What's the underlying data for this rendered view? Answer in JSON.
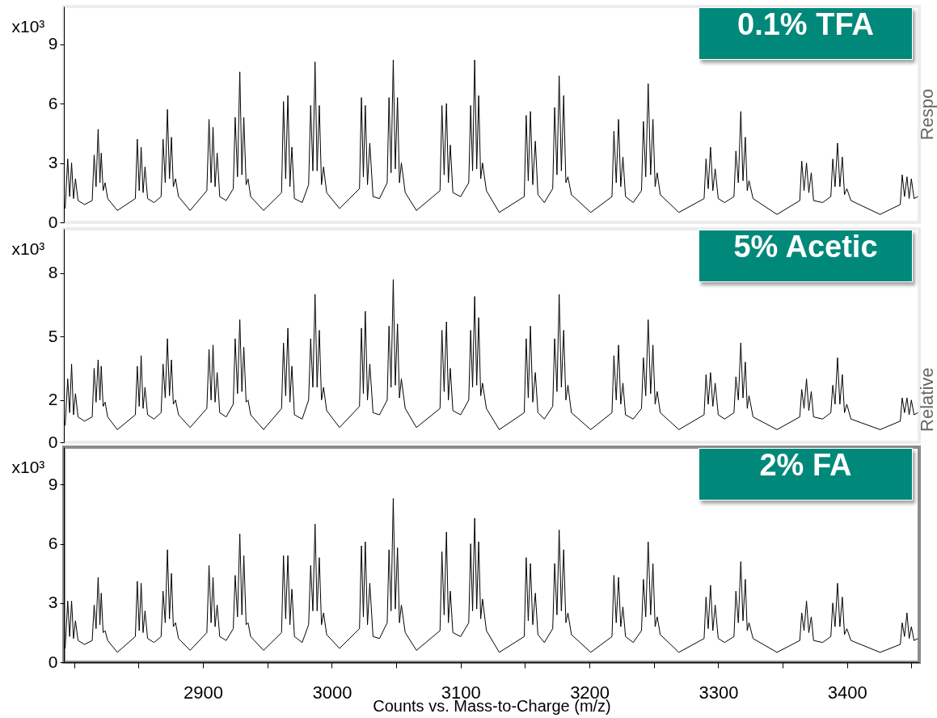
{
  "chart_data": [
    {
      "type": "line",
      "title": "0.1% TFA",
      "ylabel": "x10³",
      "tick_labels": "y",
      "annotations": [
        "Respo"
      ],
      "xlim": [
        2792,
        3456
      ],
      "ylim": [
        0,
        10.9
      ],
      "yticks": [
        0,
        3,
        6,
        9
      ],
      "x": [
        2793,
        2795,
        2796.5,
        2798,
        2799.5,
        2801,
        2803,
        2808,
        2814,
        2815.5,
        2817,
        2818.6,
        2820,
        2821,
        2822.5,
        2824,
        2826,
        2833.5,
        2847.5,
        2849,
        2850.5,
        2852,
        2853.5,
        2855,
        2857,
        2862,
        2867.5,
        2869,
        2870.7,
        2872.4,
        2874,
        2875.5,
        2877,
        2878.7,
        2881,
        2890,
        2903,
        2904.7,
        2906.3,
        2907.8,
        2909.4,
        2911,
        2913,
        2918,
        2923.5,
        2925,
        2926.8,
        2928.6,
        2930.2,
        2931.7,
        2933.5,
        2935,
        2937,
        2947,
        2961,
        2962.5,
        2964.2,
        2965.9,
        2967.5,
        2969,
        2971,
        2977,
        2982,
        2983.6,
        2985.3,
        2987,
        2988.6,
        2990.3,
        2992,
        2993.6,
        2996,
        3006,
        3021.5,
        3023,
        3024.5,
        3026,
        3027.7,
        3029.5,
        3032,
        3037,
        3043,
        3044.4,
        3046,
        3047.7,
        3049.3,
        3051,
        3052.5,
        3054,
        3057,
        3065.7,
        3084,
        3085.5,
        3087.2,
        3089,
        3090.5,
        3092,
        3094,
        3100,
        3106.3,
        3107.8,
        3109.3,
        3110.9,
        3112.5,
        3114,
        3115.6,
        3117,
        3120,
        3130,
        3149.4,
        3150.9,
        3152.5,
        3154.2,
        3156,
        3158,
        3160,
        3165,
        3171.5,
        3173,
        3174.8,
        3176.5,
        3178.2,
        3180,
        3181.7,
        3183.3,
        3186,
        3201,
        3217.5,
        3219,
        3220.8,
        3222.6,
        3224.3,
        3226,
        3228,
        3234,
        3240.4,
        3241.9,
        3243.7,
        3245.6,
        3247.5,
        3249.3,
        3251,
        3252.6,
        3255,
        3269.4,
        3289,
        3290.5,
        3292.2,
        3294,
        3295.8,
        3297.6,
        3300,
        3305,
        3312.2,
        3313.7,
        3315.6,
        3317.5,
        3319.2,
        3321,
        3322.5,
        3323.9,
        3327,
        3345.6,
        3363.3,
        3364.8,
        3366.6,
        3368.5,
        3370.3,
        3372.2,
        3374,
        3381,
        3387.4,
        3388.9,
        3390.7,
        3392.6,
        3394.4,
        3396.3,
        3398,
        3399.8,
        3403,
        3425.6,
        3441.3,
        3442.8,
        3444.6,
        3446.5,
        3448.2,
        3449.9,
        3452,
        3455
      ],
      "series": [
        {
          "color": "#000000",
          "values": [
            0.7,
            3.2,
            1.3,
            3.0,
            1.2,
            2.2,
            1.1,
            0.9,
            1.1,
            3.4,
            1.8,
            4.7,
            2.0,
            3.5,
            1.6,
            2.0,
            1.2,
            0.6,
            1.2,
            4.2,
            1.6,
            3.8,
            1.5,
            2.8,
            1.2,
            1.0,
            1.3,
            4.2,
            2.0,
            5.7,
            2.2,
            4.3,
            1.8,
            2.2,
            1.3,
            0.6,
            1.6,
            5.2,
            2.0,
            4.8,
            1.8,
            3.5,
            1.3,
            1.1,
            1.7,
            5.3,
            2.3,
            7.6,
            2.4,
            5.3,
            1.9,
            2.2,
            1.3,
            0.6,
            1.5,
            6.1,
            2.2,
            6.4,
            1.8,
            3.8,
            1.2,
            1.0,
            1.9,
            5.9,
            2.6,
            8.1,
            2.6,
            5.9,
            1.9,
            2.8,
            1.5,
            0.7,
            1.7,
            6.3,
            2.3,
            5.9,
            1.9,
            4.0,
            1.3,
            1.2,
            2.0,
            6.3,
            2.5,
            8.2,
            2.7,
            6.3,
            2.0,
            3.0,
            1.5,
            0.6,
            1.6,
            5.9,
            2.4,
            6.0,
            2.0,
            3.9,
            1.5,
            1.3,
            2.0,
            5.9,
            2.6,
            8.2,
            2.7,
            6.4,
            2.2,
            3.0,
            1.6,
            0.5,
            1.3,
            5.4,
            2.1,
            5.6,
            1.9,
            4.1,
            1.4,
            1.0,
            1.7,
            5.8,
            2.4,
            7.4,
            2.6,
            6.4,
            2.0,
            2.3,
            1.4,
            0.5,
            1.3,
            4.6,
            2.0,
            5.2,
            1.8,
            3.3,
            1.3,
            1.0,
            1.6,
            5.1,
            2.3,
            7.0,
            2.4,
            5.2,
            1.8,
            2.5,
            1.4,
            0.5,
            1.2,
            3.2,
            1.7,
            3.8,
            1.6,
            2.7,
            1.2,
            1.0,
            1.3,
            3.6,
            2.0,
            5.6,
            2.1,
            4.3,
            1.6,
            2.1,
            1.2,
            0.4,
            1.1,
            3.1,
            1.6,
            3.0,
            1.5,
            2.5,
            1.1,
            1.0,
            1.3,
            3.2,
            1.8,
            4.0,
            1.8,
            3.3,
            1.4,
            1.7,
            1.1,
            0.4,
            0.9,
            2.4,
            1.3,
            2.3,
            1.2,
            2.2,
            1.2,
            1.3
          ]
        }
      ]
    },
    {
      "type": "line",
      "title": "5% Acetic",
      "ylabel": "x10³",
      "tick_labels": "y",
      "annotations": [
        "Relative"
      ],
      "xlim": [
        2792,
        3456
      ],
      "ylim": [
        0,
        10.1
      ],
      "yticks": [
        0,
        2,
        5,
        8
      ],
      "x": [
        2793,
        2795,
        2796.5,
        2798,
        2799.5,
        2801,
        2803,
        2808,
        2814,
        2815.5,
        2817,
        2818.6,
        2820,
        2821,
        2822.5,
        2824,
        2826,
        2833.5,
        2847.5,
        2849,
        2850.5,
        2852,
        2853.5,
        2855,
        2857,
        2862,
        2867.5,
        2869,
        2870.7,
        2872.4,
        2874,
        2875.5,
        2877,
        2878.7,
        2881,
        2890,
        2903,
        2904.7,
        2906.3,
        2907.8,
        2909.4,
        2911,
        2913,
        2918,
        2923.5,
        2925,
        2926.8,
        2928.6,
        2930.2,
        2931.7,
        2933.5,
        2935,
        2937,
        2947,
        2961,
        2962.5,
        2964.2,
        2965.9,
        2967.5,
        2969,
        2971,
        2977,
        2982,
        2983.6,
        2985.3,
        2987,
        2988.6,
        2990.3,
        2992,
        2993.6,
        2996,
        3006,
        3021.5,
        3023,
        3024.5,
        3026,
        3027.7,
        3029.5,
        3032,
        3037,
        3043,
        3044.4,
        3046,
        3047.7,
        3049.3,
        3051,
        3052.5,
        3054,
        3057,
        3065.7,
        3084,
        3085.5,
        3087.2,
        3089,
        3090.5,
        3092,
        3094,
        3100,
        3106.3,
        3107.8,
        3109.3,
        3110.9,
        3112.5,
        3114,
        3115.6,
        3117,
        3120,
        3130,
        3149.4,
        3150.9,
        3152.5,
        3154.2,
        3156,
        3158,
        3160,
        3165,
        3171.5,
        3173,
        3174.8,
        3176.5,
        3178.2,
        3180,
        3181.7,
        3183.3,
        3186,
        3201,
        3217.5,
        3219,
        3220.8,
        3222.6,
        3224.3,
        3226,
        3228,
        3234,
        3240.4,
        3241.9,
        3243.7,
        3245.6,
        3247.5,
        3249.3,
        3251,
        3252.6,
        3255,
        3269.4,
        3289,
        3290.5,
        3292.2,
        3294,
        3295.8,
        3297.6,
        3300,
        3305,
        3312.2,
        3313.7,
        3315.6,
        3317.5,
        3319.2,
        3321,
        3322.5,
        3323.9,
        3327,
        3345.6,
        3363.3,
        3364.8,
        3366.6,
        3368.5,
        3370.3,
        3372.2,
        3374,
        3381,
        3387.4,
        3388.9,
        3390.7,
        3392.6,
        3394.4,
        3396.3,
        3398,
        3399.8,
        3403,
        3425.6,
        3441.3,
        3442.8,
        3444.6,
        3446.5,
        3448.2,
        3449.9,
        3452,
        3455
      ],
      "series": [
        {
          "color": "#000000",
          "values": [
            0.8,
            3.0,
            1.4,
            3.7,
            1.3,
            2.3,
            1.2,
            1.0,
            1.2,
            3.5,
            1.9,
            3.9,
            2.0,
            3.6,
            1.7,
            1.9,
            1.2,
            0.6,
            1.3,
            3.6,
            1.7,
            4.1,
            1.6,
            2.6,
            1.3,
            1.1,
            1.4,
            3.7,
            2.1,
            4.9,
            2.2,
            3.9,
            1.8,
            2.0,
            1.3,
            0.7,
            1.6,
            4.4,
            2.0,
            4.6,
            1.9,
            3.3,
            1.4,
            1.2,
            1.8,
            4.9,
            2.3,
            5.8,
            2.4,
            4.5,
            1.9,
            2.0,
            1.3,
            0.6,
            1.6,
            4.7,
            2.2,
            5.4,
            1.9,
            3.6,
            1.3,
            1.1,
            2.0,
            4.9,
            2.6,
            7.0,
            2.6,
            5.3,
            2.0,
            2.6,
            1.5,
            0.7,
            1.7,
            5.4,
            2.3,
            6.2,
            2.0,
            3.7,
            1.4,
            1.3,
            2.0,
            5.5,
            2.6,
            7.7,
            2.7,
            5.6,
            2.1,
            3.0,
            1.6,
            0.7,
            1.6,
            5.3,
            2.4,
            5.7,
            2.0,
            3.5,
            1.5,
            1.3,
            2.0,
            5.3,
            2.6,
            6.9,
            2.7,
            5.9,
            2.2,
            2.8,
            1.6,
            0.6,
            1.4,
            4.9,
            2.1,
            5.5,
            1.9,
            3.3,
            1.4,
            1.1,
            1.7,
            4.9,
            2.4,
            7.0,
            2.6,
            5.3,
            2.0,
            2.7,
            1.4,
            0.6,
            1.4,
            4.1,
            2.0,
            4.6,
            1.8,
            2.8,
            1.3,
            1.1,
            1.6,
            4.0,
            2.2,
            5.8,
            2.3,
            4.6,
            1.8,
            2.4,
            1.4,
            0.6,
            1.3,
            3.2,
            1.8,
            3.3,
            1.7,
            2.8,
            1.3,
            1.1,
            1.4,
            3.1,
            2.0,
            4.7,
            2.1,
            3.8,
            1.6,
            2.2,
            1.2,
            0.6,
            1.2,
            2.5,
            1.6,
            3.0,
            1.5,
            2.4,
            1.2,
            1.1,
            1.4,
            2.7,
            1.8,
            4.0,
            1.8,
            3.2,
            1.4,
            1.8,
            1.1,
            0.6,
            1.0,
            2.1,
            1.4,
            2.1,
            1.3,
            2.0,
            1.3,
            1.4
          ]
        }
      ]
    },
    {
      "type": "line",
      "title": "2% FA",
      "ylabel": "x10³",
      "xlabel": "Counts vs. Mass-to-Charge (m/z)",
      "xlim": [
        2792,
        3456
      ],
      "xticks": [
        {
          "value": 2800,
          "label": null
        },
        {
          "value": 2850,
          "label": null
        },
        2900,
        {
          "value": 2950,
          "label": null
        },
        3000,
        {
          "value": 3050,
          "label": null
        },
        3100,
        {
          "value": 3150,
          "label": null
        },
        3200,
        {
          "value": 3250,
          "label": null
        },
        3300,
        {
          "value": 3350,
          "label": null
        },
        3400,
        {
          "value": 3450,
          "label": null
        }
      ],
      "ylim": [
        0,
        10.9
      ],
      "yticks": [
        0,
        3,
        6,
        9
      ],
      "x": [
        2793,
        2795,
        2796.5,
        2798,
        2799.5,
        2801,
        2803,
        2808,
        2814,
        2815.5,
        2817,
        2818.6,
        2820,
        2821,
        2822.5,
        2824,
        2826,
        2833.5,
        2847.5,
        2849,
        2850.5,
        2852,
        2853.5,
        2855,
        2857,
        2862,
        2867.5,
        2869,
        2870.7,
        2872.4,
        2874,
        2875.5,
        2877,
        2878.7,
        2881,
        2890,
        2903,
        2904.7,
        2906.3,
        2907.8,
        2909.4,
        2911,
        2913,
        2918,
        2923.5,
        2925,
        2926.8,
        2928.6,
        2930.2,
        2931.7,
        2933.5,
        2935,
        2937,
        2947,
        2961,
        2962.5,
        2964.2,
        2965.9,
        2967.5,
        2969,
        2971,
        2977,
        2982,
        2983.6,
        2985.3,
        2987,
        2988.6,
        2990.3,
        2992,
        2993.6,
        2996,
        3006,
        3021.5,
        3023,
        3024.5,
        3026,
        3027.7,
        3029.5,
        3032,
        3037,
        3043,
        3044.4,
        3046,
        3047.7,
        3049.3,
        3051,
        3052.5,
        3054,
        3057,
        3065.7,
        3084,
        3085.5,
        3087.2,
        3089,
        3090.5,
        3092,
        3094,
        3100,
        3106.3,
        3107.8,
        3109.3,
        3110.9,
        3112.5,
        3114,
        3115.6,
        3117,
        3120,
        3130,
        3149.4,
        3150.9,
        3152.5,
        3154.2,
        3156,
        3158,
        3160,
        3165,
        3171.5,
        3173,
        3174.8,
        3176.5,
        3178.2,
        3180,
        3181.7,
        3183.3,
        3186,
        3201,
        3217.5,
        3219,
        3220.8,
        3222.6,
        3224.3,
        3226,
        3228,
        3234,
        3240.4,
        3241.9,
        3243.7,
        3245.6,
        3247.5,
        3249.3,
        3251,
        3252.6,
        3255,
        3269.4,
        3289,
        3290.5,
        3292.2,
        3294,
        3295.8,
        3297.6,
        3300,
        3305,
        3312.2,
        3313.7,
        3315.6,
        3317.5,
        3319.2,
        3321,
        3322.5,
        3323.9,
        3327,
        3345.6,
        3363.3,
        3364.8,
        3366.6,
        3368.5,
        3370.3,
        3372.2,
        3374,
        3381,
        3387.4,
        3388.9,
        3390.7,
        3392.6,
        3394.4,
        3396.3,
        3398,
        3399.8,
        3403,
        3425.6,
        3441.3,
        3442.8,
        3444.6,
        3446.5,
        3448.2,
        3449.9,
        3452,
        3455
      ],
      "series": [
        {
          "color": "#000000",
          "values": [
            0.7,
            3.1,
            1.3,
            3.1,
            1.2,
            2.1,
            1.1,
            0.9,
            1.1,
            2.9,
            1.7,
            4.3,
            1.9,
            3.5,
            1.5,
            1.6,
            1.1,
            0.5,
            1.3,
            4.1,
            1.6,
            4.0,
            1.5,
            2.6,
            1.2,
            1.0,
            1.3,
            3.6,
            2.0,
            5.7,
            2.2,
            4.5,
            1.8,
            2.0,
            1.2,
            0.6,
            1.5,
            4.9,
            2.0,
            4.3,
            1.8,
            2.9,
            1.3,
            1.1,
            1.7,
            4.4,
            2.3,
            6.5,
            2.4,
            5.4,
            1.9,
            2.0,
            1.3,
            0.6,
            1.5,
            5.4,
            2.2,
            5.4,
            1.9,
            3.7,
            1.3,
            1.0,
            1.9,
            4.9,
            2.6,
            7.0,
            2.6,
            5.3,
            1.9,
            2.5,
            1.4,
            0.7,
            1.7,
            5.9,
            2.3,
            6.1,
            1.9,
            4.0,
            1.3,
            1.2,
            2.0,
            5.7,
            2.6,
            8.3,
            2.7,
            5.8,
            2.0,
            2.9,
            1.5,
            0.6,
            1.6,
            5.6,
            2.4,
            6.6,
            2.0,
            3.6,
            1.5,
            1.3,
            2.0,
            6.0,
            2.6,
            7.3,
            2.7,
            6.1,
            2.2,
            3.2,
            1.6,
            0.5,
            1.3,
            5.3,
            2.1,
            5.0,
            1.9,
            3.5,
            1.4,
            1.0,
            1.7,
            5.0,
            2.4,
            6.7,
            2.6,
            5.7,
            2.0,
            2.5,
            1.4,
            0.5,
            1.3,
            4.4,
            2.0,
            4.3,
            1.8,
            2.8,
            1.3,
            1.0,
            1.6,
            4.2,
            2.3,
            6.1,
            2.4,
            5.0,
            1.8,
            2.3,
            1.4,
            0.5,
            1.2,
            3.3,
            1.7,
            3.9,
            1.6,
            2.9,
            1.2,
            1.0,
            1.3,
            3.6,
            2.0,
            5.1,
            2.1,
            4.2,
            1.6,
            2.0,
            1.2,
            0.5,
            1.1,
            2.5,
            1.6,
            3.1,
            1.5,
            2.3,
            1.1,
            1.0,
            1.3,
            3.0,
            1.8,
            4.0,
            1.8,
            3.3,
            1.4,
            1.7,
            1.1,
            0.5,
            0.9,
            2.0,
            1.3,
            2.5,
            1.2,
            1.8,
            1.1,
            1.2
          ]
        }
      ]
    }
  ]
}
